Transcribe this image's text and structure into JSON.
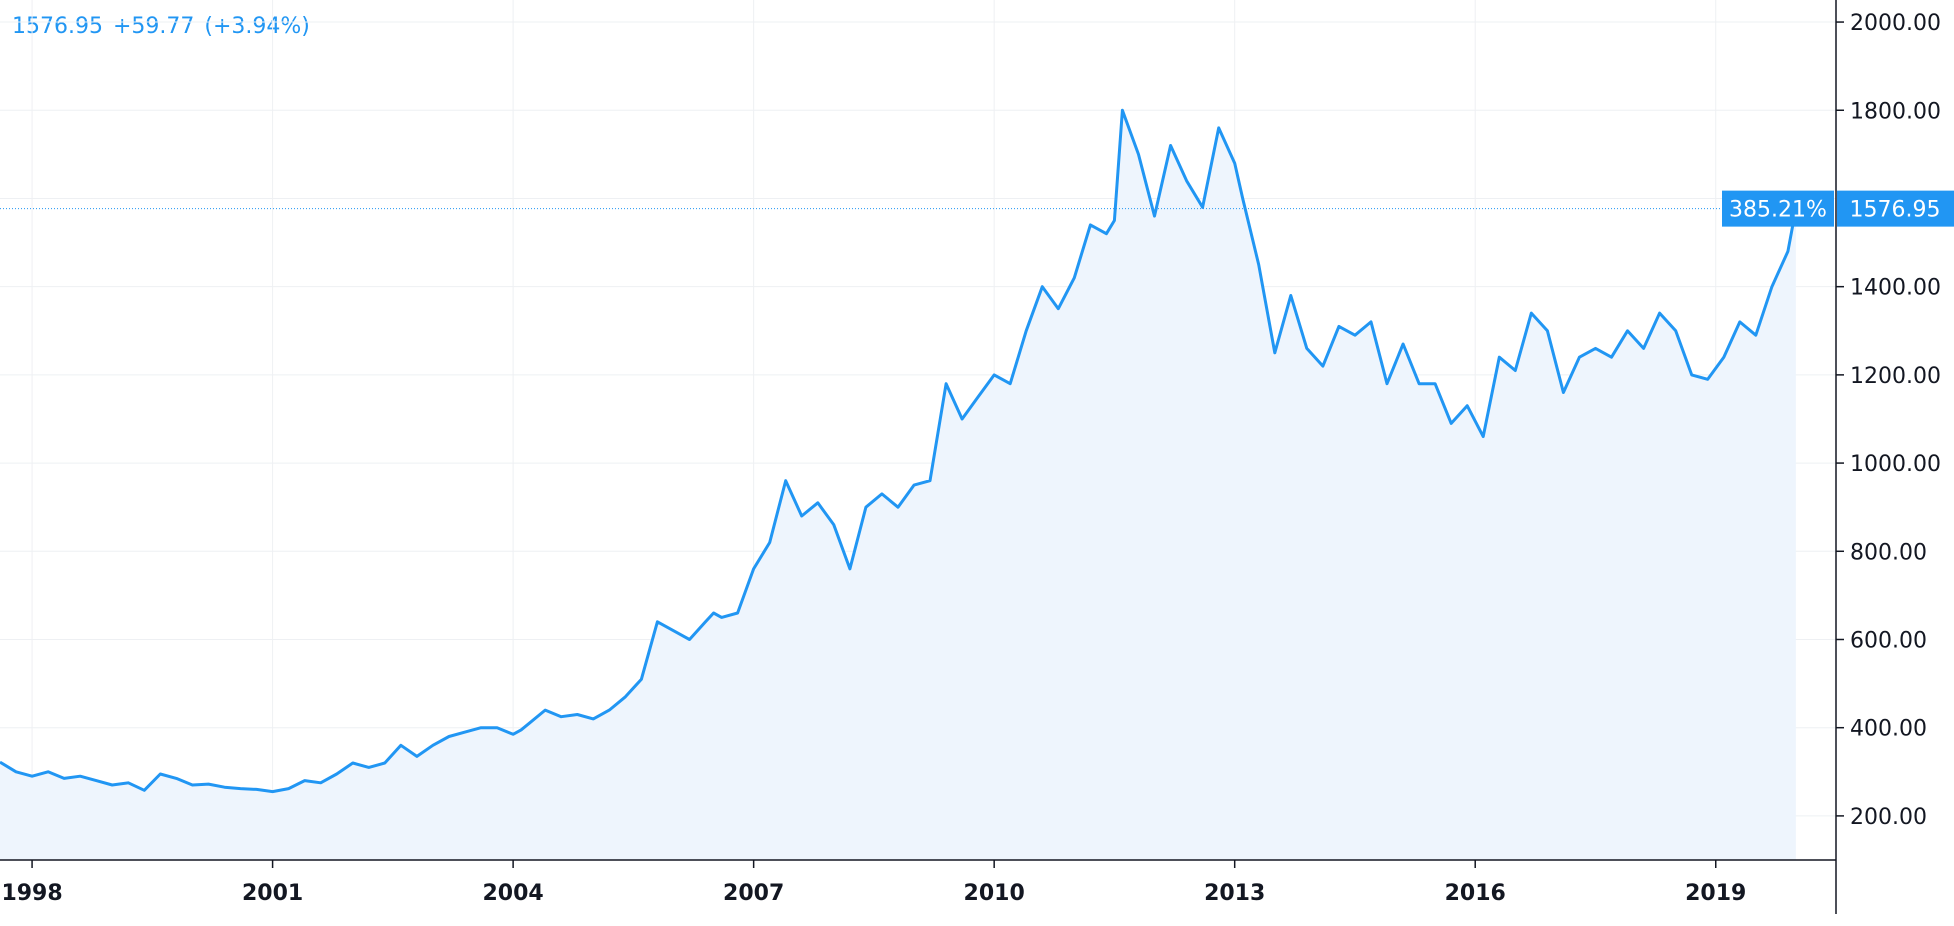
{
  "header": {
    "last": "1576.95",
    "change": "+59.77",
    "change_pct": "(+3.94%)"
  },
  "colors": {
    "line": "#2196f3",
    "area": "#eef5fd",
    "grid": "#eef0f3",
    "axis": "#131722",
    "badge": "#2196f3"
  },
  "price_badge": {
    "percent": "385.21%",
    "price": "1576.95"
  },
  "chart_data": {
    "type": "area",
    "title": "",
    "xlabel": "",
    "ylabel": "",
    "x_tick_labels": [
      "1998",
      "2001",
      "2004",
      "2007",
      "2010",
      "2013",
      "2016",
      "2019"
    ],
    "x_tick_years": [
      1998,
      2001,
      2004,
      2007,
      2010,
      2013,
      2016,
      2019
    ],
    "y_tick_labels": [
      "200.00",
      "400.00",
      "600.00",
      "800.00",
      "1000.00",
      "1200.00",
      "1400.00",
      "1800.00",
      "2000.00"
    ],
    "y_tick_values": [
      200,
      400,
      600,
      800,
      1000,
      1200,
      1400,
      1800,
      2000
    ],
    "xlim": [
      1997.6,
      2020.5
    ],
    "ylim": [
      100,
      2050
    ],
    "last_value": 1576.95,
    "grid": true,
    "series": [
      {
        "x": [
          1997.6,
          1997.8,
          1998.0,
          1998.2,
          1998.4,
          1998.6,
          1998.8,
          1999.0,
          1999.2,
          1999.4,
          1999.6,
          1999.8,
          2000.0,
          2000.2,
          2000.4,
          2000.6,
          2000.8,
          2001.0,
          2001.2,
          2001.4,
          2001.6,
          2001.8,
          2002.0,
          2002.2,
          2002.4,
          2002.6,
          2002.8,
          2003.0,
          2003.2,
          2003.4,
          2003.6,
          2003.8,
          2004.0,
          2004.1,
          2004.2,
          2004.4,
          2004.6,
          2004.8,
          2005.0,
          2005.2,
          2005.4,
          2005.6,
          2005.8,
          2006.0,
          2006.2,
          2006.4,
          2006.5,
          2006.6,
          2006.8,
          2007.0,
          2007.2,
          2007.4,
          2007.6,
          2007.8,
          2008.0,
          2008.2,
          2008.4,
          2008.6,
          2008.8,
          2009.0,
          2009.2,
          2009.4,
          2009.6,
          2009.8,
          2010.0,
          2010.2,
          2010.4,
          2010.6,
          2010.8,
          2011.0,
          2011.2,
          2011.4,
          2011.5,
          2011.6,
          2011.8,
          2012.0,
          2012.2,
          2012.4,
          2012.6,
          2012.8,
          2013.0,
          2013.1,
          2013.3,
          2013.5,
          2013.7,
          2013.9,
          2014.1,
          2014.3,
          2014.5,
          2014.7,
          2014.9,
          2015.1,
          2015.3,
          2015.5,
          2015.7,
          2015.9,
          2016.1,
          2016.3,
          2016.5,
          2016.7,
          2016.9,
          2017.1,
          2017.3,
          2017.5,
          2017.7,
          2017.9,
          2018.1,
          2018.3,
          2018.5,
          2018.7,
          2018.9,
          2019.1,
          2019.3,
          2019.5,
          2019.7,
          2019.9,
          2020.0
        ],
        "y": [
          322,
          300,
          290,
          300,
          285,
          290,
          280,
          270,
          275,
          258,
          295,
          285,
          270,
          272,
          265,
          262,
          260,
          255,
          262,
          280,
          275,
          295,
          320,
          310,
          320,
          360,
          335,
          360,
          380,
          390,
          400,
          400,
          385,
          395,
          410,
          440,
          425,
          430,
          420,
          440,
          470,
          510,
          640,
          620,
          600,
          640,
          660,
          650,
          660,
          760,
          820,
          960,
          880,
          910,
          860,
          760,
          900,
          930,
          900,
          950,
          960,
          1180,
          1100,
          1150,
          1200,
          1180,
          1300,
          1400,
          1350,
          1420,
          1540,
          1520,
          1550,
          1800,
          1700,
          1560,
          1720,
          1640,
          1580,
          1760,
          1680,
          1600,
          1450,
          1250,
          1380,
          1260,
          1220,
          1310,
          1290,
          1320,
          1180,
          1270,
          1180,
          1180,
          1090,
          1130,
          1060,
          1240,
          1210,
          1340,
          1300,
          1160,
          1240,
          1260,
          1240,
          1300,
          1260,
          1340,
          1300,
          1200,
          1190,
          1240,
          1320,
          1290,
          1400,
          1480,
          1576.95
        ]
      }
    ]
  }
}
